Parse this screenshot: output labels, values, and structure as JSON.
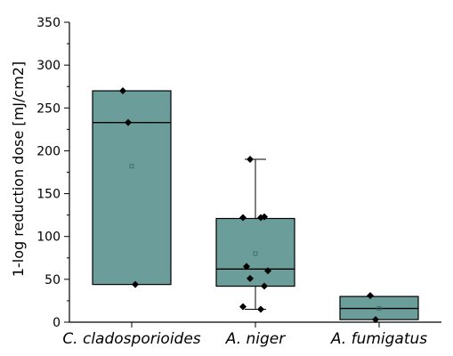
{
  "chart_data": {
    "type": "box",
    "ylabel": "1-log reduction dose [mJ/cm2]",
    "ylim": [
      0,
      350
    ],
    "yticks": [
      0,
      50,
      100,
      150,
      200,
      250,
      300,
      350
    ],
    "categories": [
      "C. cladosporioides",
      "A. niger",
      "A. fumigatus"
    ],
    "colors": {
      "box_fill": "#6b9e9a",
      "box_stroke": "#000000",
      "point": "#000000"
    },
    "boxes": [
      {
        "category": "C. cladosporioides",
        "q1": 44,
        "median": 233,
        "q3": 270,
        "whisker_low": null,
        "whisker_high": null,
        "mean": 182,
        "points": [
          270,
          233,
          44
        ]
      },
      {
        "category": "A. niger",
        "q1": 42,
        "median": 62,
        "q3": 121,
        "whisker_low": 15,
        "whisker_high": 190,
        "mean": 80,
        "points": [
          190,
          123,
          122,
          122,
          65,
          60,
          51,
          42,
          18,
          15
        ]
      },
      {
        "category": "A. fumigatus",
        "q1": 3,
        "median": 16,
        "q3": 30,
        "whisker_low": null,
        "whisker_high": null,
        "mean": 16,
        "points": [
          31,
          3
        ]
      }
    ]
  }
}
